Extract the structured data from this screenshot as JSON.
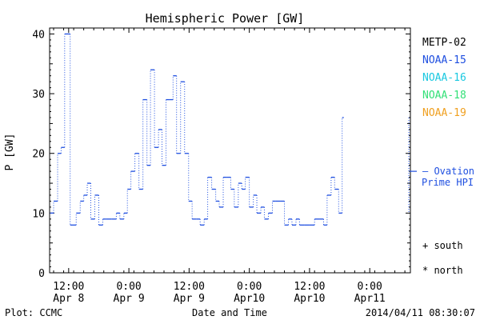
{
  "chart_data": {
    "type": "line",
    "title": "Hemispheric Power [GW]",
    "ylabel": "P [GW]",
    "xlabel": "Date and Time",
    "ylim": [
      0,
      41
    ],
    "yticks": [
      0,
      10,
      20,
      30,
      40
    ],
    "xticks": [
      {
        "hour": 12,
        "line1": "12:00",
        "line2": "Apr 8"
      },
      {
        "hour": 24,
        "line1": "0:00",
        "line2": "Apr 9"
      },
      {
        "hour": 36,
        "line1": "12:00",
        "line2": "Apr 9"
      },
      {
        "hour": 48,
        "line1": "0:00",
        "line2": "Apr10"
      },
      {
        "hour": 60,
        "line1": "12:00",
        "line2": "Apr10"
      },
      {
        "hour": 72,
        "line1": "0:00",
        "line2": "Apr11"
      }
    ],
    "xrange_hours": [
      8.2,
      80.1
    ],
    "series": [
      {
        "name": "NOAA-15",
        "color": "#1f4fe0",
        "points": [
          [
            8.3,
            10
          ],
          [
            9.0,
            12
          ],
          [
            9.8,
            20
          ],
          [
            10.5,
            21
          ],
          [
            11.2,
            40
          ],
          [
            12.3,
            8
          ],
          [
            13.5,
            10
          ],
          [
            14.3,
            12
          ],
          [
            15.0,
            13
          ],
          [
            15.7,
            15
          ],
          [
            16.4,
            9
          ],
          [
            17.2,
            13
          ],
          [
            18.0,
            8
          ],
          [
            18.8,
            9
          ],
          [
            19.5,
            9
          ],
          [
            20.6,
            9
          ],
          [
            21.5,
            10
          ],
          [
            22.2,
            9
          ],
          [
            23.0,
            10
          ],
          [
            23.7,
            14
          ],
          [
            24.4,
            17
          ],
          [
            25.2,
            20
          ],
          [
            26.0,
            14
          ],
          [
            26.8,
            29
          ],
          [
            27.6,
            18
          ],
          [
            28.3,
            34
          ],
          [
            29.1,
            21
          ],
          [
            29.9,
            24
          ],
          [
            30.6,
            18
          ],
          [
            31.4,
            29
          ],
          [
            32.1,
            29
          ],
          [
            32.8,
            33
          ],
          [
            33.5,
            20
          ],
          [
            34.3,
            32
          ],
          [
            35.1,
            20
          ],
          [
            35.9,
            12
          ],
          [
            36.6,
            9
          ],
          [
            37.5,
            9
          ],
          [
            38.2,
            8
          ],
          [
            39.0,
            9
          ],
          [
            39.7,
            16
          ],
          [
            40.5,
            14
          ],
          [
            41.3,
            12
          ],
          [
            42.0,
            11
          ],
          [
            42.8,
            16
          ],
          [
            43.5,
            16
          ],
          [
            44.3,
            14
          ],
          [
            45.0,
            11
          ],
          [
            45.8,
            15
          ],
          [
            46.5,
            14
          ],
          [
            47.2,
            16
          ],
          [
            48.0,
            11
          ],
          [
            48.8,
            13
          ],
          [
            49.5,
            10
          ],
          [
            50.3,
            11
          ],
          [
            51.0,
            9
          ],
          [
            51.8,
            10
          ],
          [
            52.6,
            12
          ],
          [
            53.3,
            12
          ],
          [
            54.2,
            12
          ],
          [
            55.0,
            8
          ],
          [
            55.8,
            9
          ],
          [
            56.5,
            8
          ],
          [
            57.3,
            9
          ],
          [
            58.0,
            8
          ],
          [
            59.0,
            8
          ],
          [
            60.0,
            8
          ],
          [
            61.0,
            9
          ],
          [
            62.0,
            9
          ],
          [
            62.8,
            8
          ],
          [
            63.5,
            13
          ],
          [
            64.3,
            16
          ],
          [
            65.0,
            14
          ],
          [
            65.8,
            10
          ],
          [
            66.5,
            26
          ]
        ]
      }
    ],
    "legend": [
      {
        "name": "METP-02",
        "color": "#000000"
      },
      {
        "name": "NOAA-15",
        "color": "#1f4fe0"
      },
      {
        "name": "NOAA-16",
        "color": "#19c8e0"
      },
      {
        "name": "NOAA-18",
        "color": "#33e077"
      },
      {
        "name": "NOAA-19",
        "color": "#f0a020"
      }
    ],
    "ovation": {
      "value": 17,
      "line1": "— Ovation",
      "line2": "Prime HPI",
      "color": "#1f4fe0"
    },
    "markers": {
      "south": "+ south",
      "north": "* north"
    }
  },
  "footer": {
    "left": "Plot: CCMC",
    "right": "2014/04/11 08:30:07"
  }
}
